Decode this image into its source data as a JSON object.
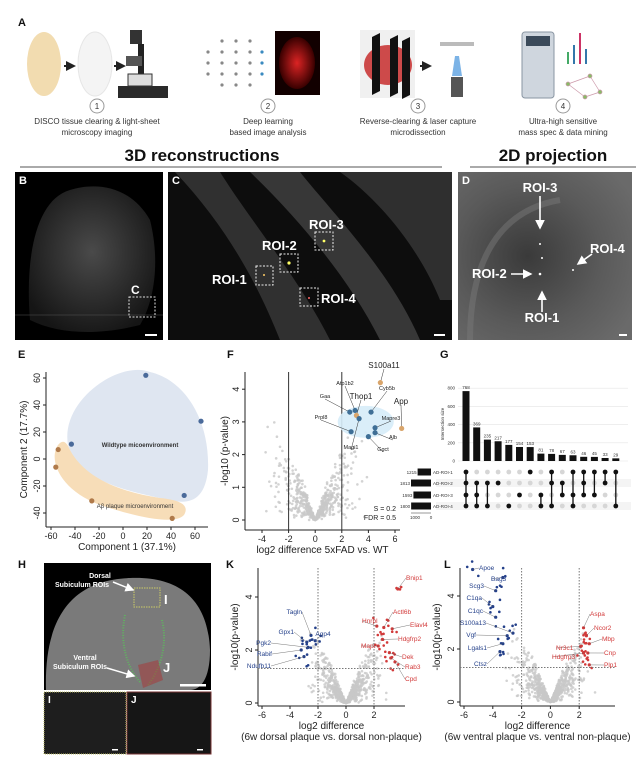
{
  "panel_labels": {
    "A": "A",
    "B": "B",
    "C": "C",
    "D": "D",
    "E": "E",
    "F": "F",
    "G": "G",
    "H": "H",
    "I": "I",
    "J": "J",
    "K": "K",
    "L": "L"
  },
  "workflow": {
    "steps": [
      {
        "number": "1",
        "line1": "DISCO tissue clearing & light-sheet",
        "line2": "microscopy imaging"
      },
      {
        "number": "2",
        "line1": "Deep learning",
        "line2": "based image analysis"
      },
      {
        "number": "3",
        "line1": "Reverse-clearing & laser capture",
        "line2": "microdissection"
      },
      {
        "number": "4",
        "line1": "Ultra-high sensitive",
        "line2": "mass spec & data mining"
      }
    ]
  },
  "sections": {
    "left": "3D reconstructions",
    "right": "2D projection"
  },
  "panel_b": {
    "box_label": "C"
  },
  "panel_c": {
    "rois": [
      "ROI-1",
      "ROI-2",
      "ROI-3",
      "ROI-4"
    ]
  },
  "panel_d": {
    "rois": [
      "ROI-1",
      "ROI-2",
      "ROI-3",
      "ROI-4"
    ]
  },
  "panel_h": {
    "dorsal_line1": "Dorsal",
    "dorsal_line2": "Subiculum ROIs",
    "ventral_line1": "Ventral",
    "ventral_line2": "Subiculum ROIs",
    "box_i": "I",
    "box_j": "J"
  },
  "colors": {
    "wildtype": "#4a6a9a",
    "plaque": "#b07a4a",
    "wildtype_fill": "#dfe6f1",
    "plaque_fill": "#f7ddb8",
    "up": "#d23a3a",
    "down": "#24408a",
    "ns": "#c8c8c8",
    "highlight": "#d9a56b"
  },
  "chart_data": [
    {
      "id": "E",
      "type": "scatter",
      "xlabel": "Component 1 (37.1%)",
      "ylabel": "Component 2 (17.7%)",
      "xlim": [
        -65,
        70
      ],
      "ylim": [
        -47,
        65
      ],
      "xticks": [
        -60,
        -40,
        -20,
        0,
        20,
        40,
        60
      ],
      "yticks": [
        60,
        40,
        20,
        0,
        -20,
        -40
      ],
      "series": [
        {
          "name": "Wildtype micoenvironment",
          "points": [
            [
              19,
              62
            ],
            [
              65,
              28
            ],
            [
              -43,
              11
            ],
            [
              51,
              -27
            ]
          ]
        },
        {
          "name": "Aβ plaque microenvironment",
          "points": [
            [
              -54,
              7
            ],
            [
              -56,
              -6
            ],
            [
              -26,
              -31
            ],
            [
              41,
              -44
            ]
          ]
        }
      ]
    },
    {
      "id": "F",
      "type": "scatter",
      "xlabel": "log2 difference 5xFAD vs. WT",
      "ylabel": "-log10 (p-value)",
      "xlim": [
        -5,
        7
      ],
      "ylim": [
        -0.2,
        4.5
      ],
      "xticks": [
        -4,
        -2,
        0,
        2,
        4,
        6
      ],
      "yticks": [
        0,
        1,
        2,
        3,
        4
      ],
      "thresholds_x": [
        -2,
        2
      ],
      "annotations": [
        "S = 0.2",
        "FDR = 0.5"
      ],
      "labeled_points": [
        {
          "label": "S100a11",
          "x": 4.9,
          "y": 4.2,
          "highlight": true
        },
        {
          "label": "Atp1b2",
          "x": 3.0,
          "y": 3.35,
          "highlight": false
        },
        {
          "label": "Cyb5b",
          "x": 4.2,
          "y": 3.3,
          "highlight": false
        },
        {
          "label": "Thop1",
          "x": 3.1,
          "y": 3.2,
          "highlight": true
        },
        {
          "label": "App",
          "x": 6.5,
          "y": 2.8,
          "highlight": true
        },
        {
          "label": "Gaa",
          "x": 2.6,
          "y": 3.3,
          "highlight": false
        },
        {
          "label": "Prpl8",
          "x": 2.7,
          "y": 2.7,
          "highlight": false
        },
        {
          "label": "Mapre3",
          "x": 4.5,
          "y": 2.82,
          "highlight": false
        },
        {
          "label": "Alb",
          "x": 4.5,
          "y": 2.67,
          "highlight": false
        },
        {
          "label": "Magi1",
          "x": 3.3,
          "y": 3.1,
          "highlight": false
        },
        {
          "label": "Ggct",
          "x": 4.0,
          "y": 2.55,
          "highlight": false
        }
      ]
    },
    {
      "id": "G",
      "type": "bar",
      "ylabel": "Intersection size",
      "yticks": [
        0,
        200,
        400,
        600,
        800
      ],
      "ylim": [
        0,
        800
      ],
      "values": [
        768,
        369,
        235,
        217,
        177,
        154,
        153,
        81,
        78,
        67,
        63,
        46,
        45,
        33,
        29
      ],
      "sets": [
        {
          "name": "AD-ROI-1",
          "size": 1215
        },
        {
          "name": "AD-ROI-2",
          "size": 1813
        },
        {
          "name": "AD-ROI-3",
          "size": 1593
        },
        {
          "name": "AD-ROI-4",
          "size": 1800
        }
      ],
      "set_axis_ticks": [
        "1000",
        "0"
      ],
      "membership": [
        [
          1,
          2,
          3,
          4
        ],
        [
          2,
          3,
          4
        ],
        [
          2,
          4
        ],
        [
          2
        ],
        [
          4
        ],
        [
          3
        ],
        [
          1
        ],
        [
          3,
          4
        ],
        [
          1,
          2,
          4
        ],
        [
          2,
          3
        ],
        [
          1,
          3,
          4
        ],
        [
          1,
          2,
          3
        ],
        [
          1,
          3
        ],
        [
          1,
          2
        ],
        [
          1,
          4
        ]
      ]
    },
    {
      "id": "K",
      "type": "scatter",
      "xlabel": "log2 difference",
      "subtitle": "(6w dorsal plaque vs. dorsal non-plaque)",
      "ylabel": "-log10(p-value)",
      "xlim": [
        -6.2,
        4.5
      ],
      "ylim": [
        -0.2,
        5
      ],
      "xticks": [
        -6,
        -4,
        -2,
        0,
        2
      ],
      "yticks": [
        0,
        2,
        4
      ],
      "thresholds_x": [
        -2,
        2
      ],
      "threshold_y": 1.3,
      "labeled_down": [
        {
          "label": "Tagln",
          "x": -2.5,
          "y": 2.55
        },
        {
          "label": "Gpx1",
          "x": -2.8,
          "y": 2.3
        },
        {
          "label": "Pgk2",
          "x": -2.7,
          "y": 2.1
        },
        {
          "label": "Rabif",
          "x": -3.2,
          "y": 2.0
        },
        {
          "label": "Ndufb11",
          "x": -3.0,
          "y": 1.75
        },
        {
          "label": "Aqp4",
          "x": -2.2,
          "y": 2.35
        }
      ],
      "labeled_up": [
        {
          "label": "Bnip1",
          "x": 3.7,
          "y": 4.3
        },
        {
          "label": "Hnrpl",
          "x": 2.2,
          "y": 2.9
        },
        {
          "label": "Actl6b",
          "x": 2.7,
          "y": 2.85
        },
        {
          "label": "Elavl4",
          "x": 3.3,
          "y": 2.8
        },
        {
          "label": "Hdgfrp2",
          "x": 2.6,
          "y": 2.4
        },
        {
          "label": "Mapt",
          "x": 2.3,
          "y": 2.15
        },
        {
          "label": "Dek",
          "x": 3.1,
          "y": 1.9
        },
        {
          "label": "Rab3",
          "x": 3.2,
          "y": 1.7
        },
        {
          "label": "Cpd",
          "x": 3.5,
          "y": 1.55
        }
      ]
    },
    {
      "id": "L",
      "type": "scatter",
      "xlabel": "log2 difference",
      "subtitle": "(6w ventral plaque vs. ventral non-plaque)",
      "ylabel": "-log10(p-value)",
      "xlim": [
        -6.2,
        4
      ],
      "ylim": [
        -0.2,
        5
      ],
      "xticks": [
        -6,
        -4,
        -2,
        0,
        2
      ],
      "yticks": [
        0,
        2,
        4
      ],
      "thresholds_x": [
        -2,
        2
      ],
      "threshold_y": 1.3,
      "labeled_down": [
        {
          "label": "Apoe",
          "x": -5.4,
          "y": 5.0
        },
        {
          "label": "Bag3",
          "x": -3.3,
          "y": 4.7
        },
        {
          "label": "Scg3",
          "x": -3.8,
          "y": 4.2
        },
        {
          "label": "C1qa",
          "x": -4.0,
          "y": 3.6
        },
        {
          "label": "C1qc",
          "x": -3.8,
          "y": 3.2
        },
        {
          "label": "S100a13",
          "x": -2.6,
          "y": 2.6
        },
        {
          "label": "Vgf",
          "x": -3.0,
          "y": 2.5
        },
        {
          "label": "Lgals1",
          "x": -3.3,
          "y": 2.2
        },
        {
          "label": "Ctsz",
          "x": -3.5,
          "y": 1.9
        }
      ],
      "labeled_up": [
        {
          "label": "Aspa",
          "x": 2.3,
          "y": 2.8
        },
        {
          "label": "Ncor2",
          "x": 2.5,
          "y": 2.5
        },
        {
          "label": "Mbp",
          "x": 2.7,
          "y": 2.2
        },
        {
          "label": "Nr3c1",
          "x": 2.1,
          "y": 2.1
        },
        {
          "label": "Hdgfrp3",
          "x": 2.3,
          "y": 1.85
        },
        {
          "label": "Cnp",
          "x": 2.6,
          "y": 1.85
        },
        {
          "label": "Plp1",
          "x": 2.7,
          "y": 1.4
        }
      ]
    }
  ]
}
